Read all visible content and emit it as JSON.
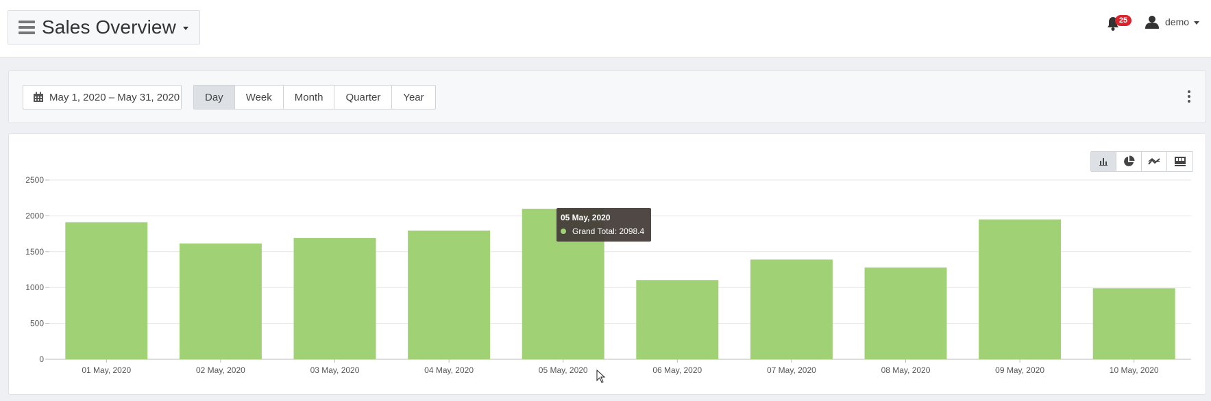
{
  "header": {
    "title": "Sales Overview",
    "notification_count": "25",
    "user_name": "demo"
  },
  "filters": {
    "date_range": "May 1, 2020 – May 31, 2020",
    "periods": [
      "Day",
      "Week",
      "Month",
      "Quarter",
      "Year"
    ],
    "active_period": "Day"
  },
  "view_buttons": [
    "bar-chart-icon",
    "pie-chart-icon",
    "line-chart-icon",
    "pivot-table-icon"
  ],
  "tooltip": {
    "title": "05 May, 2020",
    "series_label": "Grand Total: 2098.4"
  },
  "colors": {
    "bar": "#a1d175",
    "badge": "#d9232d",
    "tooltip_bg": "#463e3a"
  },
  "chart_data": {
    "type": "bar",
    "categories": [
      "01 May, 2020",
      "02 May, 2020",
      "03 May, 2020",
      "04 May, 2020",
      "05 May, 2020",
      "06 May, 2020",
      "07 May, 2020",
      "08 May, 2020",
      "09 May, 2020",
      "10 May, 2020"
    ],
    "series": [
      {
        "name": "Grand Total",
        "values": [
          1910,
          1615,
          1690,
          1795,
          2098.4,
          1105,
          1390,
          1280,
          1950,
          990
        ]
      }
    ],
    "yticks": [
      "0",
      "500",
      "1000",
      "1500",
      "2000",
      "2500"
    ],
    "ylim": [
      0,
      2500
    ],
    "grid": true,
    "legend": "none"
  }
}
